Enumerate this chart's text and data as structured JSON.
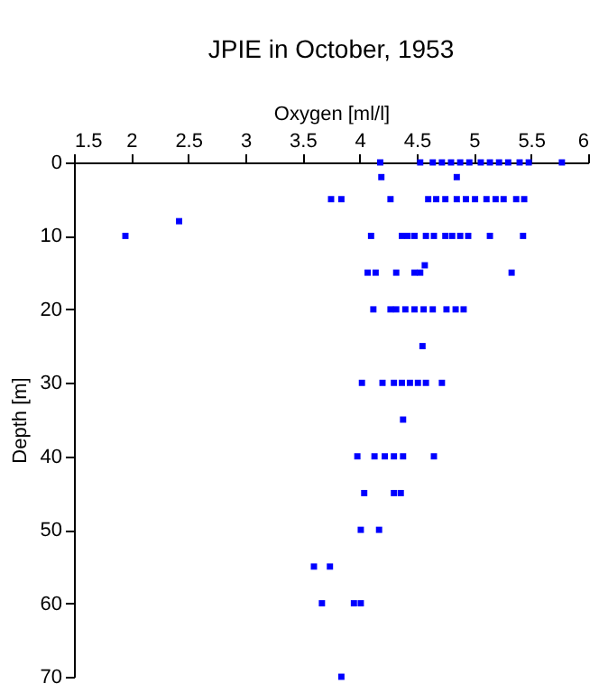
{
  "chart_data": {
    "type": "scatter",
    "title": "JPIE in October, 1953",
    "xlabel": "Oxygen [ml/l]",
    "ylabel": "Depth [m]",
    "marker": "square",
    "grid": false,
    "xlim": [
      1.5,
      6
    ],
    "xticks": [
      1.5,
      2,
      2.5,
      3,
      3.5,
      4,
      4.5,
      5,
      5.5,
      6
    ],
    "ylim": [
      70,
      0
    ],
    "yticks": [
      0,
      10,
      20,
      30,
      40,
      50,
      60,
      70
    ],
    "series": [
      {
        "color": "#0000ff",
        "x": [
          4.18,
          4.53,
          4.64,
          4.72,
          4.8,
          4.88,
          4.96,
          5.06,
          5.14,
          5.22,
          5.3,
          5.4,
          5.48,
          5.77,
          4.19,
          4.85,
          3.75,
          3.84,
          4.27,
          4.6,
          4.67,
          4.75,
          4.85,
          4.93,
          5.01,
          5.11,
          5.19,
          5.26,
          5.37,
          5.44,
          2.42,
          1.95,
          4.1,
          4.37,
          4.42,
          4.48,
          4.58,
          4.65,
          4.75,
          4.81,
          4.88,
          4.95,
          5.14,
          5.43,
          4.57,
          4.07,
          4.14,
          4.32,
          4.48,
          4.53,
          5.33,
          4.12,
          4.27,
          4.32,
          4.4,
          4.48,
          4.56,
          4.64,
          4.76,
          4.84,
          4.91,
          4.55,
          4.02,
          4.2,
          4.3,
          4.37,
          4.44,
          4.51,
          4.58,
          4.72,
          4.38,
          3.98,
          4.13,
          4.22,
          4.3,
          4.38,
          4.65,
          4.04,
          4.3,
          4.36,
          4.01,
          4.17,
          3.6,
          3.74,
          3.67,
          3.95,
          4.01,
          3.84
        ],
        "values": [
          0,
          0,
          0,
          0,
          0,
          0,
          0,
          0,
          0,
          0,
          0,
          0,
          0,
          0,
          2,
          2,
          5,
          5,
          5,
          5,
          5,
          5,
          5,
          5,
          5,
          5,
          5,
          5,
          5,
          5,
          8,
          10,
          10,
          10,
          10,
          10,
          10,
          10,
          10,
          10,
          10,
          10,
          10,
          10,
          14,
          15,
          15,
          15,
          15,
          15,
          15,
          20,
          20,
          20,
          20,
          20,
          20,
          20,
          20,
          20,
          20,
          25,
          30,
          30,
          30,
          30,
          30,
          30,
          30,
          30,
          35,
          40,
          40,
          40,
          40,
          40,
          40,
          45,
          45,
          45,
          50,
          50,
          55,
          55,
          60,
          60,
          60,
          70
        ]
      }
    ]
  }
}
